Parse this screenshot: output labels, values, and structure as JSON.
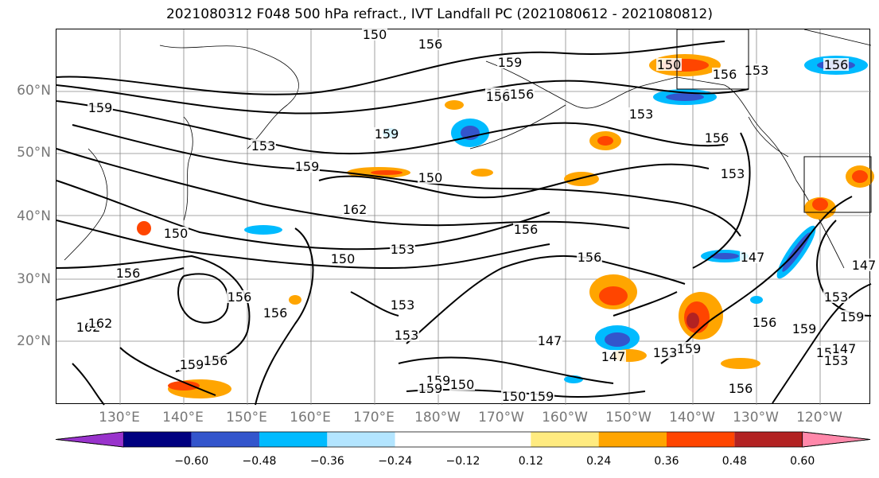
{
  "title": "2021080312 F048 500 hPa refract., IVT Landfall PC (2021080612 - 2021080812)",
  "lat_labels": [
    "60°N",
    "50°N",
    "40°N",
    "30°N",
    "20°N"
  ],
  "lon_labels": [
    "130°E",
    "140°E",
    "150°E",
    "160°E",
    "170°E",
    "180°W",
    "170°W",
    "160°W",
    "150°W",
    "140°W",
    "130°W",
    "120°W"
  ],
  "contour_labels": [
    "150",
    "156",
    "159",
    "156",
    "156",
    "150",
    "153",
    "156",
    "156",
    "156",
    "159",
    "156",
    "153",
    "159",
    "153",
    "159",
    "150",
    "153",
    "162",
    "150",
    "153",
    "150",
    "153",
    "153",
    "156",
    "156",
    "156",
    "147",
    "156",
    "156",
    "147",
    "147",
    "153",
    "159",
    "156",
    "159",
    "153",
    "147",
    "153",
    "147",
    "159",
    "156",
    "159",
    "159",
    "150",
    "159",
    "150",
    "159",
    "156",
    "162",
    "162",
    "153"
  ],
  "colorbar": {
    "colors": [
      "#9933cc",
      "#000080",
      "#3355cc",
      "#00bbff",
      "#b3e5ff",
      "#ffffff",
      "#ffffff",
      "#ffeb80",
      "#ffa500",
      "#ff4500",
      "#b22222",
      "#ff88aa"
    ],
    "ticks": [
      "−0.60",
      "−0.48",
      "−0.36",
      "−0.24",
      "−0.12",
      "0.12",
      "0.24",
      "0.36",
      "0.48",
      "0.60"
    ]
  }
}
